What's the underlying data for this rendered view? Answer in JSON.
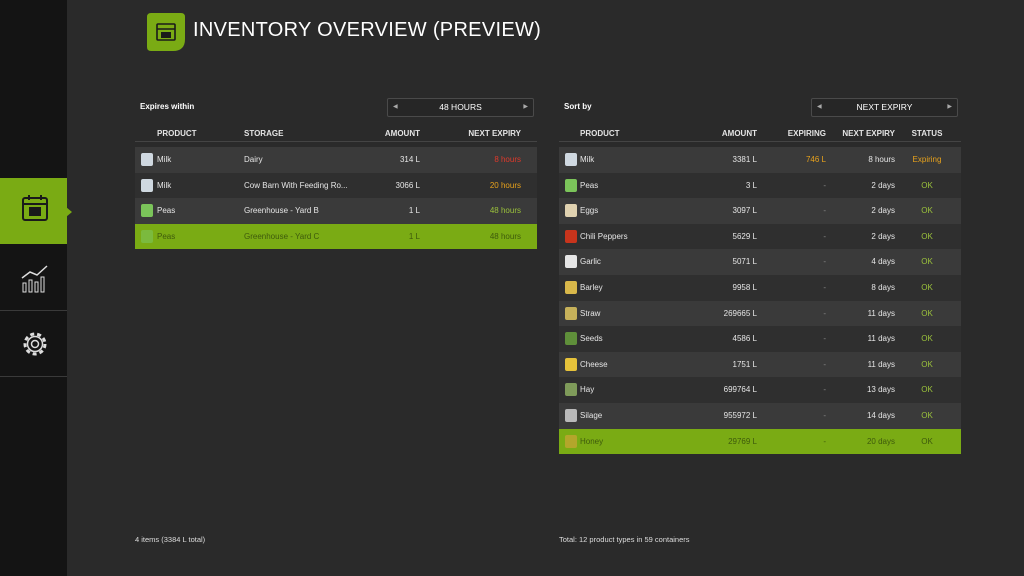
{
  "header": {
    "title": "INVENTORY OVERVIEW (PREVIEW)"
  },
  "left_panel": {
    "filter_label": "Expires within",
    "filter_value": "48 HOURS",
    "columns": [
      "PRODUCT",
      "STORAGE",
      "AMOUNT",
      "NEXT EXPIRY"
    ],
    "rows": [
      [
        "Milk",
        "Dairy",
        "314 L",
        "8 hours"
      ],
      [
        "Milk",
        "Cow Barn With Feeding Ro...",
        "3066 L",
        "20 hours"
      ],
      [
        "Peas",
        "Greenhouse - Yard B",
        "1 L",
        "48 hours"
      ],
      [
        "Peas",
        "Greenhouse - Yard C",
        "1 L",
        "48 hours"
      ]
    ],
    "footer": "4 items (3384 L total)"
  },
  "right_panel": {
    "filter_label": "Sort by",
    "filter_value": "NEXT EXPIRY",
    "columns": [
      "PRODUCT",
      "AMOUNT",
      "EXPIRING",
      "NEXT EXPIRY",
      "STATUS"
    ],
    "rows": [
      [
        "Milk",
        "3381 L",
        "746 L",
        "8 hours",
        "Expiring"
      ],
      [
        "Peas",
        "3 L",
        "-",
        "2 days",
        "OK"
      ],
      [
        "Eggs",
        "3097 L",
        "-",
        "2 days",
        "OK"
      ],
      [
        "Chili Peppers",
        "5629 L",
        "-",
        "2 days",
        "OK"
      ],
      [
        "Garlic",
        "5071 L",
        "-",
        "4 days",
        "OK"
      ],
      [
        "Barley",
        "9958 L",
        "-",
        "8 days",
        "OK"
      ],
      [
        "Straw",
        "269665 L",
        "-",
        "11 days",
        "OK"
      ],
      [
        "Seeds",
        "4586 L",
        "-",
        "11 days",
        "OK"
      ],
      [
        "Cheese",
        "1751 L",
        "-",
        "11 days",
        "OK"
      ],
      [
        "Hay",
        "699764 L",
        "-",
        "13 days",
        "OK"
      ],
      [
        "Silage",
        "955972 L",
        "-",
        "14 days",
        "OK"
      ],
      [
        "Honey",
        "29769 L",
        "-",
        "20 days",
        "OK"
      ]
    ],
    "footer": "Total: 12 product types in 59 containers"
  }
}
